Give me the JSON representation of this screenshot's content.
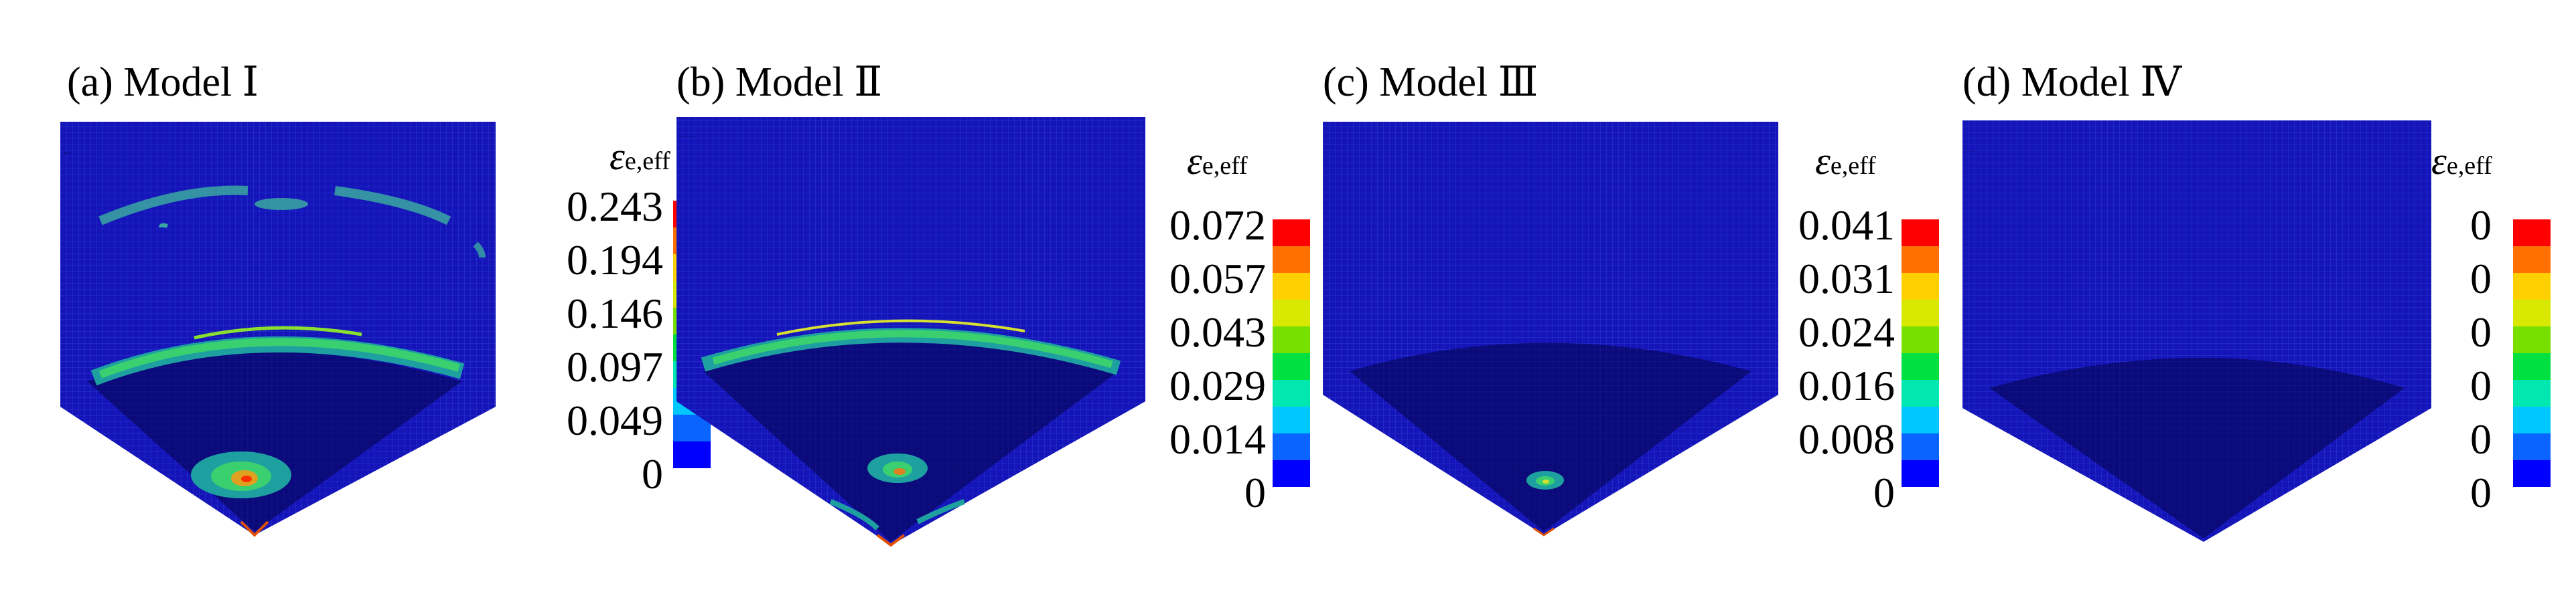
{
  "colors": {
    "mesh_base": "#1414b8",
    "mesh_dark": "#0a0a7a",
    "mesh_line": "#2a3ad0",
    "scale": [
      "#0000ff",
      "#0a64ff",
      "#00c8ff",
      "#00e8b0",
      "#00e040",
      "#78e000",
      "#d8e800",
      "#ffd000",
      "#ff7000",
      "#ff0000"
    ]
  },
  "panels": [
    {
      "title": "(a) Model Ⅰ",
      "legend_symbol": "ε",
      "legend_sub": "e,eff",
      "ticks": [
        "0.243",
        "0.194",
        "0.146",
        "0.097",
        "0.049",
        "0"
      ]
    },
    {
      "title": "(b) Model Ⅱ",
      "legend_symbol": "ε",
      "legend_sub": "e,eff",
      "ticks": [
        "0.072",
        "0.057",
        "0.043",
        "0.029",
        "0.014",
        "0"
      ]
    },
    {
      "title": "(c) Model Ⅲ",
      "legend_symbol": "ε",
      "legend_sub": "e,eff",
      "ticks": [
        "0.041",
        "0.031",
        "0.024",
        "0.016",
        "0.008",
        "0"
      ]
    },
    {
      "title": "(d) Model Ⅳ",
      "legend_symbol": "ε",
      "legend_sub": "e,eff",
      "ticks": [
        "0",
        "0",
        "0",
        "0",
        "0",
        "0"
      ]
    }
  ]
}
